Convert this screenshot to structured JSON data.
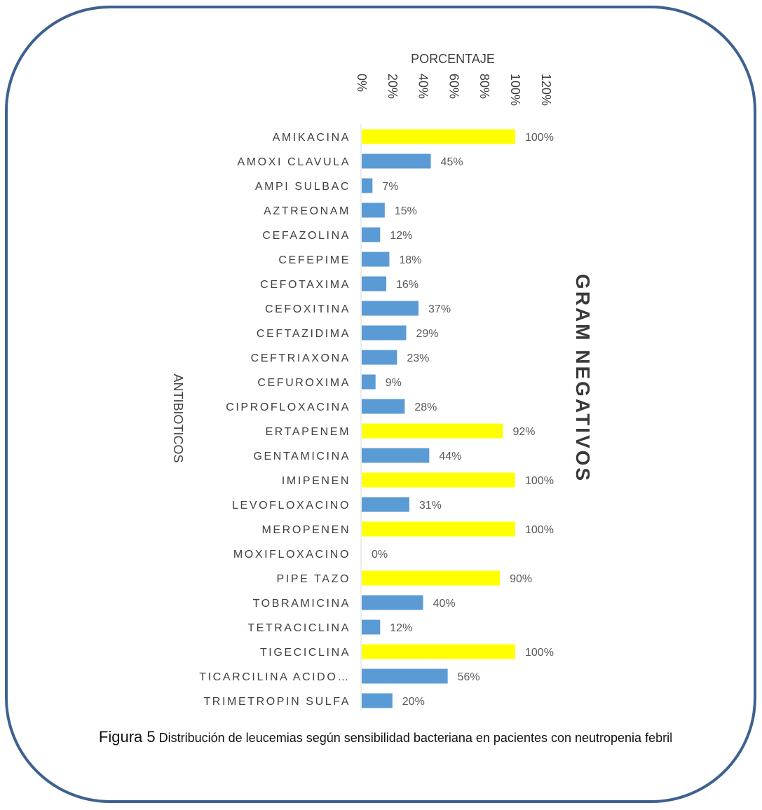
{
  "chart_data": {
    "type": "bar",
    "orientation": "horizontal",
    "title": "GRAM NEGATIVOS",
    "xlabel": "PORCENTAJE",
    "ylabel": "ANTIBIOTICOS",
    "xlim": [
      0,
      120
    ],
    "x_ticks": [
      "0%",
      "20%",
      "40%",
      "60%",
      "80%",
      "100%",
      "120%"
    ],
    "categories": [
      "AMIKACINA",
      "AMOXI CLAVULA",
      "AMPI SULBAC",
      "AZTREONAM",
      "CEFAZOLINA",
      "CEFEPIME",
      "CEFOTAXIMA",
      "CEFOXITINA",
      "CEFTAZIDIMA",
      "CEFTRIAXONA",
      "CEFUROXIMA",
      "CIPROFLOXACINA",
      "ERTAPENEM",
      "GENTAMICINA",
      "IMIPENEN",
      "LEVOFLOXACINO",
      "MEROPENEN",
      "MOXIFLOXACINO",
      "PIPE TAZO",
      "TOBRAMICINA",
      "TETRACICLINA",
      "TIGECICLINA",
      "TICARCILINA ACIDO…",
      "TRIMETROPIN SULFA"
    ],
    "values": [
      100,
      45,
      7,
      15,
      12,
      18,
      16,
      37,
      29,
      23,
      9,
      28,
      92,
      44,
      100,
      31,
      100,
      0,
      90,
      40,
      12,
      100,
      56,
      20
    ],
    "value_labels": [
      "100%",
      "45%",
      "7%",
      "15%",
      "12%",
      "18%",
      "16%",
      "37%",
      "29%",
      "23%",
      "9%",
      "28%",
      "92%",
      "44%",
      "100%",
      "31%",
      "100%",
      "0%",
      "90%",
      "40%",
      "12%",
      "100%",
      "56%",
      "20%"
    ],
    "bar_colors": [
      "#ffff00",
      "#5b9bd5",
      "#5b9bd5",
      "#5b9bd5",
      "#5b9bd5",
      "#5b9bd5",
      "#5b9bd5",
      "#5b9bd5",
      "#5b9bd5",
      "#5b9bd5",
      "#5b9bd5",
      "#5b9bd5",
      "#ffff00",
      "#5b9bd5",
      "#ffff00",
      "#5b9bd5",
      "#ffff00",
      "#5b9bd5",
      "#ffff00",
      "#5b9bd5",
      "#5b9bd5",
      "#ffff00",
      "#5b9bd5",
      "#5b9bd5"
    ],
    "grid": false,
    "legend": "none"
  },
  "caption": {
    "figure_label": "Figura 5",
    "text": "Distribución de leucemias según sensibilidad bacteriana en pacientes con neutropenia febril"
  },
  "colors": {
    "frame_border": "#3e6190",
    "highlight": "#ffff00",
    "default_bar": "#5b9bd5"
  }
}
